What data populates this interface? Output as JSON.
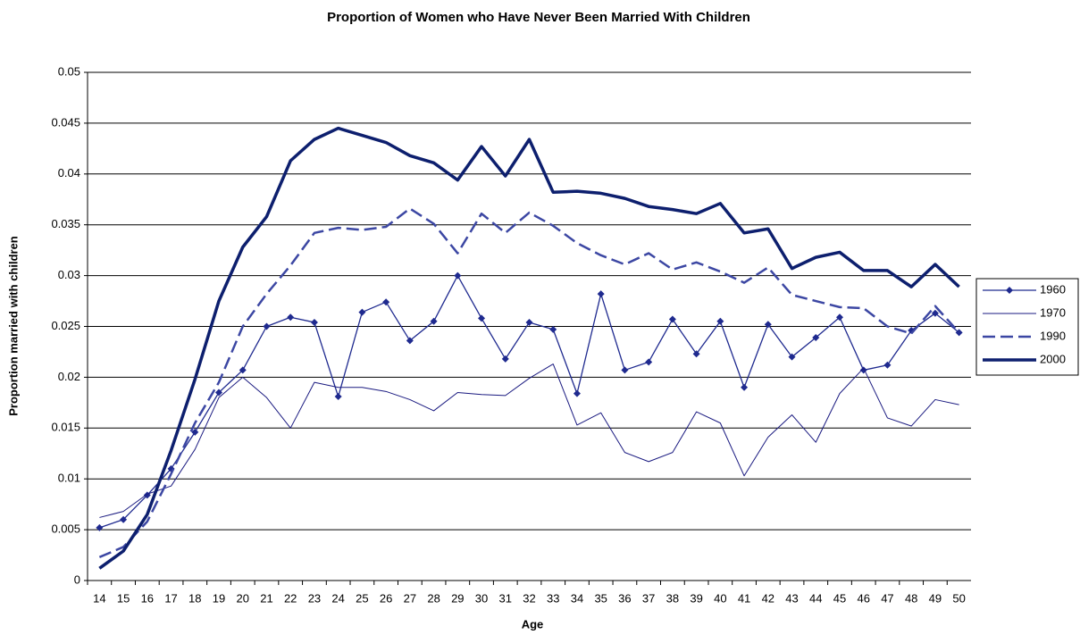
{
  "chart_data": {
    "type": "line",
    "title": "Proportion of Women who Have Never Been Married With Children",
    "x_label": "Age",
    "y_label": "Proportion married with children",
    "categories": [
      "14",
      "15",
      "16",
      "17",
      "18",
      "19",
      "20",
      "21",
      "22",
      "23",
      "24",
      "25",
      "26",
      "27",
      "28",
      "29",
      "30",
      "31",
      "32",
      "33",
      "34",
      "35",
      "36",
      "37",
      "38",
      "39",
      "40",
      "41",
      "42",
      "43",
      "44",
      "45",
      "46",
      "47",
      "48",
      "49",
      "50"
    ],
    "series": [
      {
        "name": "1960",
        "color": "#1f2a8f",
        "style": "markers",
        "values": [
          0.0052,
          0.006,
          0.0084,
          0.011,
          0.0146,
          0.0185,
          0.0207,
          0.025,
          0.0259,
          0.0254,
          0.0181,
          0.0264,
          0.0274,
          0.0236,
          0.0255,
          0.03,
          0.0258,
          0.0218,
          0.0254,
          0.0247,
          0.0184,
          0.0282,
          0.0207,
          0.0215,
          0.0257,
          0.0223,
          0.0255,
          0.019,
          0.0252,
          0.022,
          0.0239,
          0.0259,
          0.0207,
          0.0212,
          0.0246,
          0.0263,
          0.0244
        ]
      },
      {
        "name": "1970",
        "color": "#1a1a80",
        "style": "thin",
        "values": [
          0.0062,
          0.0068,
          0.0085,
          0.0093,
          0.0129,
          0.018,
          0.02,
          0.018,
          0.015,
          0.0195,
          0.019,
          0.019,
          0.0186,
          0.0178,
          0.0167,
          0.0185,
          0.0183,
          0.0182,
          0.0199,
          0.0213,
          0.0153,
          0.0165,
          0.0126,
          0.0117,
          0.0126,
          0.0166,
          0.0155,
          0.0103,
          0.0141,
          0.0163,
          0.0136,
          0.0184,
          0.0209,
          0.016,
          0.0152,
          0.0178,
          0.0173
        ]
      },
      {
        "name": "1990",
        "color": "#3c47a3",
        "style": "dashed",
        "values": [
          0.0023,
          0.0033,
          0.0058,
          0.0105,
          0.0155,
          0.0195,
          0.025,
          0.0282,
          0.031,
          0.0342,
          0.0347,
          0.0345,
          0.0348,
          0.0366,
          0.0351,
          0.0322,
          0.0361,
          0.0342,
          0.0362,
          0.0349,
          0.0332,
          0.032,
          0.0311,
          0.0322,
          0.0306,
          0.0313,
          0.0304,
          0.0293,
          0.0308,
          0.0281,
          0.0275,
          0.0269,
          0.0268,
          0.025,
          0.0243,
          0.027,
          0.0244
        ]
      },
      {
        "name": "2000",
        "color": "#0d1f6e",
        "style": "thick",
        "values": [
          0.0012,
          0.0029,
          0.0065,
          0.0128,
          0.0198,
          0.0275,
          0.0328,
          0.0358,
          0.0413,
          0.0434,
          0.0445,
          0.0438,
          0.0431,
          0.0418,
          0.0411,
          0.0394,
          0.0427,
          0.0398,
          0.0434,
          0.0382,
          0.0383,
          0.0381,
          0.0376,
          0.0368,
          0.0365,
          0.0361,
          0.0371,
          0.0342,
          0.0346,
          0.0307,
          0.0318,
          0.0323,
          0.0305,
          0.0305,
          0.0289,
          0.0311,
          0.0289
        ]
      }
    ],
    "ylim": [
      0,
      0.05
    ],
    "yticks": [
      0,
      0.005,
      0.01,
      0.015,
      0.02,
      0.025,
      0.03,
      0.035,
      0.04,
      0.045,
      0.05
    ],
    "grid": true,
    "legend": "right"
  }
}
